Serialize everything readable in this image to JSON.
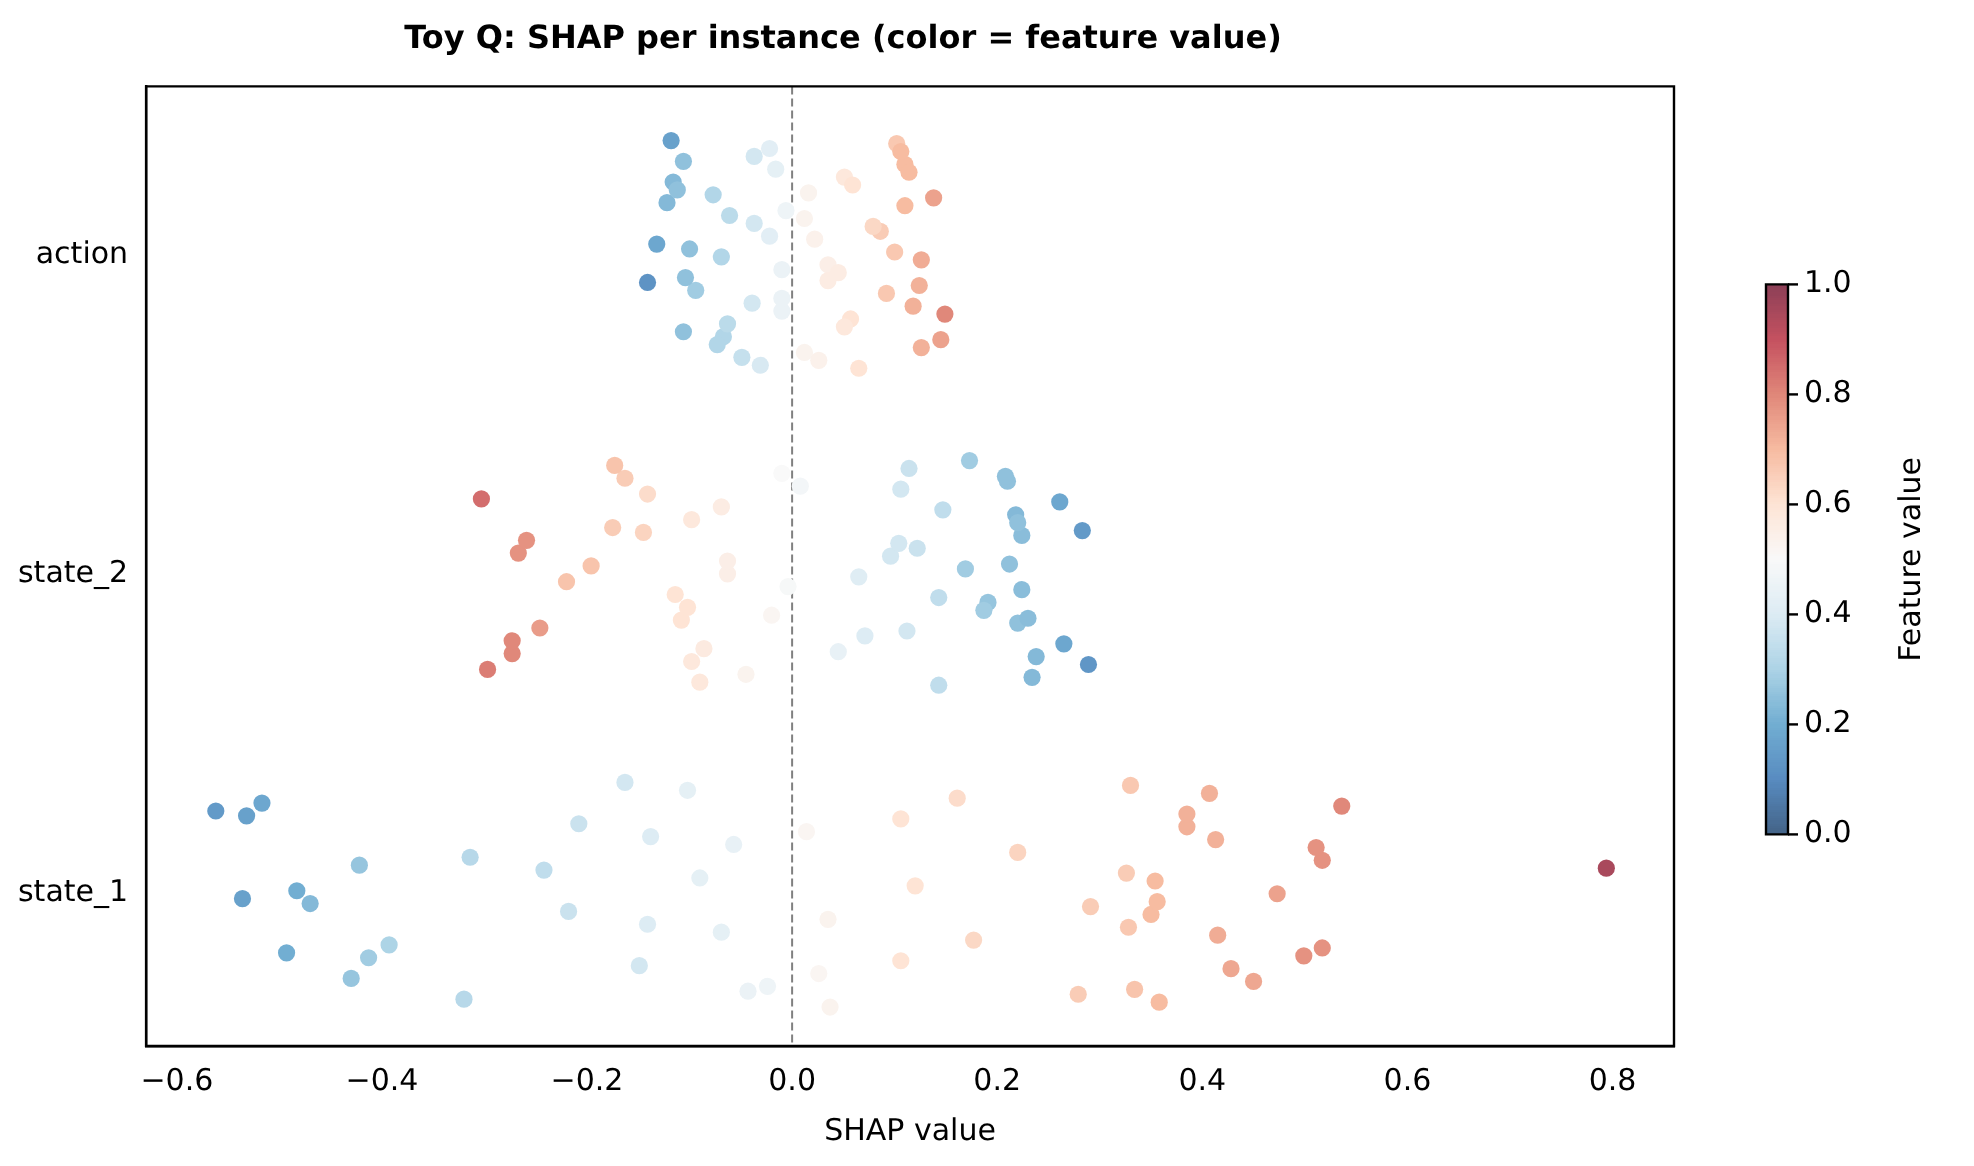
{
  "chart_data": {
    "type": "scatter",
    "orientation": "horizontal",
    "title": "Toy Q: SHAP per instance (color = feature value)",
    "xlabel": "SHAP value",
    "clabel": "Feature value",
    "categories": [
      "action",
      "state_2",
      "state_1"
    ],
    "xlim": [
      -0.63,
      0.86
    ],
    "xticks": [
      {
        "value": -0.6,
        "label": "−0.6"
      },
      {
        "value": -0.4,
        "label": "−0.4"
      },
      {
        "value": -0.2,
        "label": "−0.2"
      },
      {
        "value": 0,
        "label": "0.0"
      },
      {
        "value": 0.2,
        "label": "0.2"
      },
      {
        "value": 0.4,
        "label": "0.4"
      },
      {
        "value": 0.6,
        "label": "0.6"
      },
      {
        "value": 0.8,
        "label": "0.8"
      }
    ],
    "clim": [
      0,
      1
    ],
    "cticks": [
      {
        "value": 0,
        "label": "0.0"
      },
      {
        "value": 0.2,
        "label": "0.2"
      },
      {
        "value": 0.4,
        "label": "0.4"
      },
      {
        "value": 0.6,
        "label": "0.6"
      },
      {
        "value": 0.8,
        "label": "0.8"
      },
      {
        "value": 1,
        "label": "1.0"
      }
    ],
    "grid": false,
    "legend": false,
    "marker": "circle",
    "ref_lines": [
      {
        "axis": "x",
        "value": 0,
        "color": "#808080",
        "line_style": "dashed"
      }
    ],
    "series": [
      {
        "x": [
          "action",
          "action",
          "action",
          "action",
          "action",
          "action",
          "action",
          "action",
          "action",
          "action",
          "action",
          "action",
          "action",
          "action",
          "action",
          "action",
          "action",
          "action",
          "action",
          "action",
          "action",
          "action",
          "action",
          "action",
          "action",
          "action",
          "action",
          "action",
          "action",
          "action",
          "action",
          "action",
          "action",
          "action",
          "action",
          "action",
          "action",
          "action",
          "action",
          "action",
          "action",
          "action",
          "action",
          "action",
          "action",
          "action",
          "action",
          "action",
          "action",
          "action",
          "action",
          "action",
          "action",
          "action",
          "action",
          "action",
          "action",
          "action",
          "state_2",
          "state_2",
          "state_2",
          "state_2",
          "state_2",
          "state_2",
          "state_2",
          "state_2",
          "state_2",
          "state_2",
          "state_2",
          "state_2",
          "state_2",
          "state_2",
          "state_2",
          "state_2",
          "state_2",
          "state_2",
          "state_2",
          "state_2",
          "state_2",
          "state_2",
          "state_2",
          "state_2",
          "state_2",
          "state_2",
          "state_2",
          "state_2",
          "state_2",
          "state_2",
          "state_2",
          "state_2",
          "state_2",
          "state_2",
          "state_2",
          "state_2",
          "state_2",
          "state_2",
          "state_2",
          "state_2",
          "state_2",
          "state_2",
          "state_2",
          "state_2",
          "state_2",
          "state_2",
          "state_2",
          "state_2",
          "state_2",
          "state_2",
          "state_2",
          "state_2",
          "state_2",
          "state_2",
          "state_2",
          "state_2",
          "state_2",
          "state_2",
          "state_2",
          "state_2",
          "state_1",
          "state_1",
          "state_1",
          "state_1",
          "state_1",
          "state_1",
          "state_1",
          "state_1",
          "state_1",
          "state_1",
          "state_1",
          "state_1",
          "state_1",
          "state_1",
          "state_1",
          "state_1",
          "state_1",
          "state_1",
          "state_1",
          "state_1",
          "state_1",
          "state_1",
          "state_1",
          "state_1",
          "state_1",
          "state_1",
          "state_1",
          "state_1",
          "state_1",
          "state_1",
          "state_1",
          "state_1",
          "state_1",
          "state_1",
          "state_1",
          "state_1",
          "state_1",
          "state_1",
          "state_1",
          "state_1",
          "state_1",
          "state_1",
          "state_1",
          "state_1",
          "state_1",
          "state_1",
          "state_1",
          "state_1",
          "state_1",
          "state_1",
          "state_1",
          "state_1",
          "state_1",
          "state_1",
          "state_1",
          "state_1",
          "state_1",
          "state_1",
          "state_1",
          "state_1"
        ],
        "values": [
          -0.118,
          -0.141,
          -0.077,
          -0.067,
          -0.1,
          -0.106,
          -0.039,
          -0.061,
          -0.049,
          -0.01,
          -0.116,
          -0.063,
          -0.022,
          -0.022,
          -0.094,
          -0.122,
          -0.073,
          -0.069,
          -0.016,
          -0.01,
          -0.037,
          -0.031,
          -0.104,
          -0.112,
          -0.106,
          -0.132,
          -0.037,
          -0.01,
          -0.006,
          0.012,
          0.035,
          0.051,
          0.057,
          0.086,
          0.102,
          0.124,
          0.138,
          0.145,
          0.1,
          0.11,
          0.118,
          0.012,
          0.026,
          0.045,
          0.059,
          0.051,
          0.022,
          0.106,
          0.092,
          0.11,
          0.126,
          0.126,
          0.114,
          0.149,
          0.079,
          0.065,
          0.035,
          0.016,
          -0.273,
          -0.196,
          -0.163,
          -0.108,
          -0.145,
          -0.045,
          -0.004,
          -0.303,
          -0.273,
          -0.267,
          -0.173,
          -0.102,
          -0.098,
          -0.098,
          -0.063,
          0.008,
          -0.246,
          -0.259,
          -0.09,
          -0.114,
          -0.069,
          -0.086,
          -0.063,
          -0.01,
          -0.02,
          -0.175,
          -0.297,
          -0.22,
          -0.141,
          0.071,
          0.122,
          0.173,
          0.191,
          0.218,
          0.238,
          0.169,
          0.21,
          0.22,
          0.224,
          0.234,
          0.224,
          0.261,
          0.265,
          0.096,
          0.114,
          0.187,
          0.22,
          0.289,
          0.065,
          0.106,
          0.112,
          0.104,
          0.143,
          0.143,
          0.147,
          0.045,
          0.212,
          0.208,
          0.23,
          0.283,
          -0.043,
          -0.47,
          -0.532,
          -0.413,
          -0.242,
          -0.163,
          -0.141,
          -0.138,
          -0.43,
          -0.483,
          -0.517,
          -0.393,
          -0.314,
          -0.32,
          -0.218,
          -0.208,
          -0.149,
          -0.09,
          -0.102,
          -0.069,
          -0.057,
          -0.024,
          -0.536,
          -0.562,
          -0.493,
          -0.422,
          0.037,
          0.035,
          0.014,
          0.026,
          0.12,
          0.161,
          0.177,
          0.22,
          0.279,
          0.291,
          0.106,
          0.106,
          0.326,
          0.33,
          0.328,
          0.413,
          0.45,
          0.473,
          0.536,
          0.517,
          0.517,
          0.358,
          0.35,
          0.385,
          0.428,
          0.354,
          0.407,
          0.415,
          0.511,
          0.334,
          0.356,
          0.385,
          0.499,
          0.794
        ],
        "cvalues": [
          0.16,
          0.12,
          0.31,
          0.31,
          0.25,
          0.25,
          0.38,
          0.33,
          0.35,
          0.45,
          0.23,
          0.33,
          0.42,
          0.42,
          0.28,
          0.23,
          0.31,
          0.31,
          0.43,
          0.45,
          0.38,
          0.39,
          0.25,
          0.25,
          0.25,
          0.18,
          0.38,
          0.45,
          0.46,
          0.53,
          0.55,
          0.58,
          0.6,
          0.66,
          0.67,
          0.72,
          0.75,
          0.75,
          0.67,
          0.7,
          0.72,
          0.53,
          0.54,
          0.56,
          0.6,
          0.58,
          0.54,
          0.7,
          0.67,
          0.7,
          0.72,
          0.73,
          0.7,
          0.8,
          0.63,
          0.6,
          0.56,
          0.53,
          0.8,
          0.68,
          0.66,
          0.6,
          0.64,
          0.53,
          0.49,
          0.85,
          0.8,
          0.78,
          0.68,
          0.6,
          0.58,
          0.58,
          0.55,
          0.48,
          0.76,
          0.78,
          0.58,
          0.6,
          0.56,
          0.57,
          0.55,
          0.5,
          0.52,
          0.66,
          0.82,
          0.68,
          0.62,
          0.4,
          0.36,
          0.28,
          0.26,
          0.23,
          0.23,
          0.28,
          0.25,
          0.25,
          0.24,
          0.23,
          0.24,
          0.18,
          0.18,
          0.38,
          0.36,
          0.28,
          0.25,
          0.13,
          0.41,
          0.38,
          0.38,
          0.38,
          0.34,
          0.34,
          0.34,
          0.44,
          0.25,
          0.25,
          0.24,
          0.14,
          0.45,
          0.23,
          0.16,
          0.28,
          0.34,
          0.38,
          0.4,
          0.4,
          0.26,
          0.2,
          0.18,
          0.3,
          0.32,
          0.32,
          0.36,
          0.36,
          0.38,
          0.43,
          0.43,
          0.43,
          0.44,
          0.46,
          0.16,
          0.14,
          0.2,
          0.26,
          0.53,
          0.53,
          0.52,
          0.52,
          0.6,
          0.62,
          0.63,
          0.64,
          0.66,
          0.66,
          0.6,
          0.6,
          0.66,
          0.67,
          0.67,
          0.72,
          0.74,
          0.75,
          0.8,
          0.78,
          0.78,
          0.7,
          0.7,
          0.72,
          0.74,
          0.7,
          0.72,
          0.73,
          0.78,
          0.68,
          0.7,
          0.72,
          0.78,
          0.95
        ]
      }
    ]
  }
}
